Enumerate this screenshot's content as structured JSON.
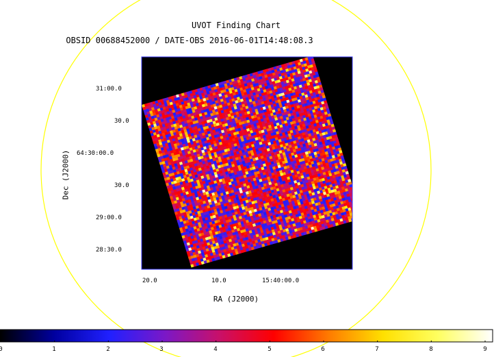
{
  "chart_data": {
    "type": "heatmap",
    "title": "UVOT Finding Chart",
    "subtitle": "OBSID 00688452000 / DATE-OBS 2016-06-01T14:48:08.3",
    "xlabel": "RA (J2000)",
    "ylabel": "Dec (J2000)",
    "x_ticks": [
      "20.0",
      "10.0",
      "15:40:00.0"
    ],
    "y_ticks": [
      "31:00.0",
      "30.0",
      "64:30:00.0",
      "30.0",
      "29:00.0",
      "28:30.0"
    ],
    "colorbar": {
      "ticks": [
        "0",
        "1",
        "2",
        "3",
        "4",
        "5",
        "6",
        "7",
        "8",
        "9"
      ],
      "range": [
        0,
        9
      ],
      "colormap": [
        "#000000",
        "#0000a0",
        "#2020ff",
        "#7a18c8",
        "#c8106a",
        "#ff0000",
        "#ff7a00",
        "#ffe000",
        "#ffff60",
        "#ffffff"
      ]
    },
    "overlay_circle_color": "#ffff00"
  }
}
